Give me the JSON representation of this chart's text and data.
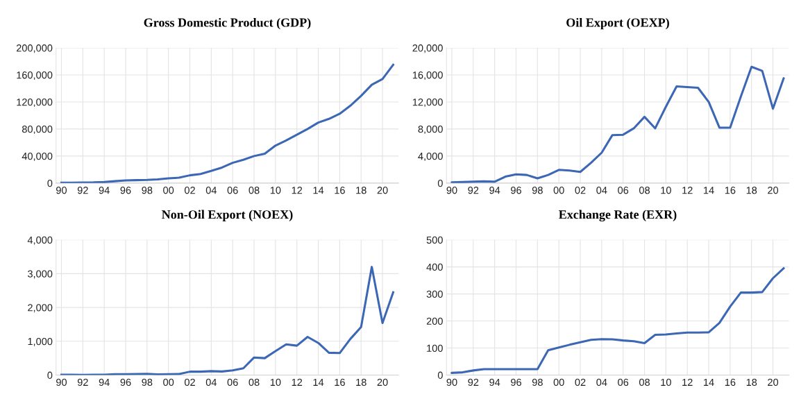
{
  "chart_data": [
    {
      "type": "line",
      "title": "Gross Domestic Product (GDP)",
      "categories": [
        "90",
        null,
        "92",
        null,
        "94",
        null,
        "96",
        null,
        "98",
        null,
        "00",
        null,
        "02",
        null,
        "04",
        null,
        "06",
        null,
        "08",
        null,
        "10",
        null,
        "12",
        null,
        "14",
        null,
        "16",
        null,
        "18",
        null,
        "20",
        null
      ],
      "series": [
        {
          "color": "#3c67b5",
          "values": [
            500,
            600,
            900,
            1000,
            1500,
            2800,
            4000,
            4300,
            4700,
            5500,
            7000,
            8000,
            11500,
            13500,
            18000,
            23000,
            30000,
            34500,
            40000,
            43500,
            55500,
            63000,
            71500,
            80000,
            89500,
            95000,
            102500,
            114500,
            129000,
            145500,
            154000,
            175000
          ]
        }
      ],
      "ylim": [
        0,
        200000
      ],
      "yticks": [
        {
          "value": 0,
          "label": "0"
        },
        {
          "value": 40000,
          "label": "40,000"
        },
        {
          "value": 80000,
          "label": "80,000"
        },
        {
          "value": 120000,
          "label": "120,000"
        },
        {
          "value": 160000,
          "label": "160,000"
        },
        {
          "value": 200000,
          "label": "200,000"
        }
      ],
      "grid": true
    },
    {
      "type": "line",
      "title": "Oil Export (OEXP)",
      "categories": [
        "90",
        null,
        "92",
        null,
        "94",
        null,
        "96",
        null,
        "98",
        null,
        "00",
        null,
        "02",
        null,
        "04",
        null,
        "06",
        null,
        "08",
        null,
        "10",
        null,
        "12",
        null,
        "14",
        null,
        "16",
        null,
        "18",
        null,
        "20",
        null
      ],
      "series": [
        {
          "color": "#3c67b5",
          "values": [
            100,
            150,
            200,
            250,
            200,
            950,
            1300,
            1200,
            700,
            1200,
            1950,
            1850,
            1650,
            3000,
            4500,
            7100,
            7150,
            8100,
            9800,
            8100,
            11300,
            14300,
            14200,
            14100,
            12000,
            8200,
            8200,
            12800,
            17200,
            16600,
            11000,
            15500
          ]
        }
      ],
      "ylim": [
        0,
        20000
      ],
      "yticks": [
        {
          "value": 0,
          "label": "0"
        },
        {
          "value": 4000,
          "label": "4,000"
        },
        {
          "value": 8000,
          "label": "8,000"
        },
        {
          "value": 12000,
          "label": "12,000"
        },
        {
          "value": 16000,
          "label": "16,000"
        },
        {
          "value": 20000,
          "label": "20,000"
        }
      ],
      "grid": true
    },
    {
      "type": "line",
      "title": "Non-Oil Export (NOEX)",
      "categories": [
        "90",
        null,
        "92",
        null,
        "94",
        null,
        "96",
        null,
        "98",
        null,
        "00",
        null,
        "02",
        null,
        "04",
        null,
        "06",
        null,
        "08",
        null,
        "10",
        null,
        "12",
        null,
        "14",
        null,
        "16",
        null,
        "18",
        null,
        "20",
        null
      ],
      "series": [
        {
          "color": "#3c67b5",
          "values": [
            10,
            10,
            5,
            10,
            10,
            25,
            25,
            30,
            35,
            20,
            25,
            30,
            100,
            100,
            115,
            105,
            140,
            200,
            520,
            500,
            710,
            910,
            870,
            1130,
            950,
            660,
            650,
            1070,
            1420,
            3200,
            1540,
            2450
          ]
        }
      ],
      "ylim": [
        0,
        4000
      ],
      "yticks": [
        {
          "value": 0,
          "label": "0"
        },
        {
          "value": 1000,
          "label": "1,000"
        },
        {
          "value": 2000,
          "label": "2,000"
        },
        {
          "value": 3000,
          "label": "3,000"
        },
        {
          "value": 4000,
          "label": "4,000"
        }
      ],
      "grid": true
    },
    {
      "type": "line",
      "title": "Exchange Rate (EXR)",
      "categories": [
        "90",
        null,
        "92",
        null,
        "94",
        null,
        "96",
        null,
        "98",
        null,
        "00",
        null,
        "02",
        null,
        "04",
        null,
        "06",
        null,
        "08",
        null,
        "10",
        null,
        "12",
        null,
        "14",
        null,
        "16",
        null,
        "18",
        null,
        "20",
        null
      ],
      "series": [
        {
          "color": "#3c67b5",
          "values": [
            8,
            10,
            17,
            22,
            22,
            22,
            22,
            22,
            22,
            92,
            102,
            112,
            121,
            130,
            133,
            132,
            128,
            125,
            118,
            149,
            150,
            154,
            157,
            157,
            158,
            193,
            253,
            305,
            305,
            307,
            358,
            395
          ]
        }
      ],
      "ylim": [
        0,
        500
      ],
      "yticks": [
        0,
        100,
        200,
        300,
        400,
        500
      ],
      "grid": true
    }
  ]
}
